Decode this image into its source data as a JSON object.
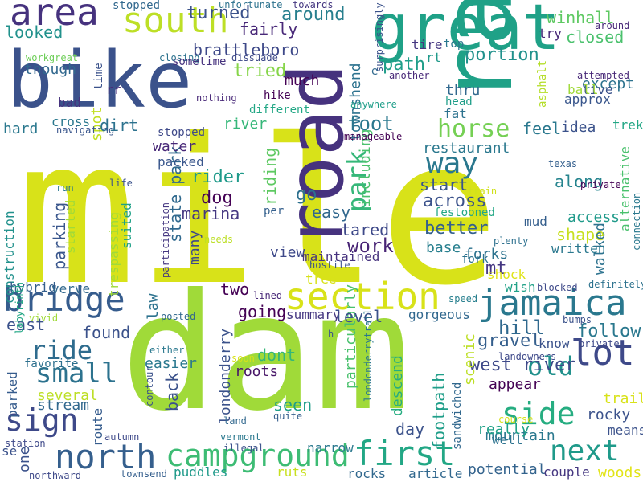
{
  "palette": [
    "#d8e219",
    "#a0da39",
    "#4ac16d",
    "#1fa187",
    "#277f8e",
    "#365c8d",
    "#46327e",
    "#440154"
  ],
  "words": [
    {
      "text": "mile",
      "color": "#d8e219"
    },
    {
      "text": "dam",
      "color": "#a0da39"
    },
    {
      "text": "rail",
      "color": "#1fa187"
    },
    {
      "text": "bike",
      "color": "#3b528b"
    },
    {
      "text": "road",
      "color": "#46327e"
    },
    {
      "text": "great",
      "color": "#1fa187"
    },
    {
      "text": "area",
      "color": "#46327e"
    },
    {
      "text": "south",
      "color": "#bddf26"
    },
    {
      "text": "section",
      "color": "#d8e219"
    },
    {
      "text": "jamaica",
      "color": "#2a788e"
    },
    {
      "text": "bridge",
      "color": "#365c8d"
    },
    {
      "text": "campground",
      "color": "#3dbc74"
    },
    {
      "text": "first",
      "color": "#22a785"
    },
    {
      "text": "north",
      "color": "#355f8d"
    },
    {
      "text": "next",
      "color": "#1f9a8a"
    },
    {
      "text": "lot",
      "color": "#3e4989"
    },
    {
      "text": "side",
      "color": "#26ad81"
    },
    {
      "text": "sign",
      "color": "#3e4989"
    },
    {
      "text": "small",
      "color": "#2c728e"
    },
    {
      "text": "ride",
      "color": "#2f6c8e"
    },
    {
      "text": "way",
      "color": "#2a788e"
    },
    {
      "text": "horse",
      "color": "#75d054"
    },
    {
      "text": "park",
      "color": "#35b779"
    },
    {
      "text": "old",
      "color": "#21918c"
    },
    {
      "text": "turned",
      "color": "#3b528b"
    },
    {
      "text": "around",
      "color": "#277f8e"
    },
    {
      "text": "brattleboro",
      "color": "#3e4989"
    },
    {
      "text": "winhall",
      "color": "#5ec962"
    },
    {
      "text": "closed",
      "color": "#4ac16d"
    },
    {
      "text": "looked",
      "color": "#21918c"
    },
    {
      "text": "though",
      "color": "#31688e"
    },
    {
      "text": "fairly",
      "color": "#482878"
    },
    {
      "text": "spot",
      "color": "#c2df23"
    },
    {
      "text": "tried",
      "color": "#86d549"
    },
    {
      "text": "path",
      "color": "#1f9e89"
    },
    {
      "text": "portion",
      "color": "#21918c"
    },
    {
      "text": "foot",
      "color": "#2a788e"
    },
    {
      "text": "townshend",
      "color": "#2c728e"
    },
    {
      "text": "except",
      "color": "#2c728e"
    },
    {
      "text": "rider",
      "color": "#1f9a8a"
    },
    {
      "text": "restaurant",
      "color": "#2a788e"
    },
    {
      "text": "along",
      "color": "#25848e"
    },
    {
      "text": "across",
      "color": "#3b528b"
    },
    {
      "text": "state park",
      "color": "#30698e"
    },
    {
      "text": "marina",
      "color": "#453781"
    },
    {
      "text": "work",
      "color": "#482475"
    },
    {
      "text": "parking",
      "color": "#39568c"
    },
    {
      "text": "better",
      "color": "#35608d"
    },
    {
      "text": "shape",
      "color": "#c8e020"
    },
    {
      "text": "access",
      "color": "#1f9a8a"
    },
    {
      "text": "walked",
      "color": "#2c728e"
    },
    {
      "text": "londonderry",
      "color": "#3b528b"
    },
    {
      "text": "west river",
      "color": "#3e4989"
    },
    {
      "text": "follow",
      "color": "#2a788e"
    },
    {
      "text": "hill",
      "color": "#30698e"
    },
    {
      "text": "gravel",
      "color": "#355f8d"
    },
    {
      "text": "trailer",
      "color": "#d8e219"
    },
    {
      "text": "mountain",
      "color": "#2a788e"
    },
    {
      "text": "rocky",
      "color": "#3b528b"
    },
    {
      "text": "really",
      "color": "#1fa187"
    },
    {
      "text": "woods",
      "color": "#e2e418"
    },
    {
      "text": "appear",
      "color": "#440154"
    },
    {
      "text": "potential",
      "color": "#33638d"
    },
    {
      "text": "construction",
      "color": "#21918c"
    },
    {
      "text": "trespassing",
      "color": "#a0da39"
    },
    {
      "text": "stream",
      "color": "#31688e"
    },
    {
      "text": "several",
      "color": "#bddf26"
    },
    {
      "text": "favorite",
      "color": "#2d708e"
    },
    {
      "text": "route",
      "color": "#365c8d"
    },
    {
      "text": "found",
      "color": "#3b528b"
    },
    {
      "text": "east",
      "color": "#3b528b"
    },
    {
      "text": "back",
      "color": "#3b528b"
    },
    {
      "text": "going",
      "color": "#440154"
    },
    {
      "text": "dont",
      "color": "#35b779"
    },
    {
      "text": "seen",
      "color": "#1f9e89"
    },
    {
      "text": "day",
      "color": "#3b528b"
    },
    {
      "text": "footpath",
      "color": "#1f9e89"
    },
    {
      "text": "descend",
      "color": "#26ad81"
    },
    {
      "text": "particularly",
      "color": "#4ac16d"
    },
    {
      "text": "level",
      "color": "#3b528b"
    },
    {
      "text": "summary",
      "color": "#453781"
    },
    {
      "text": "gorgeous",
      "color": "#31688e"
    },
    {
      "text": "scenic",
      "color": "#bddf26"
    },
    {
      "text": "water",
      "color": "#482878"
    },
    {
      "text": "packed",
      "color": "#39568c"
    },
    {
      "text": "dog",
      "color": "#440154"
    },
    {
      "text": "go",
      "color": "#2d708e"
    },
    {
      "text": "easy",
      "color": "#31688e"
    },
    {
      "text": "tared",
      "color": "#3e4989"
    },
    {
      "text": "view",
      "color": "#3e4989"
    },
    {
      "text": "maintained",
      "color": "#46327e"
    },
    {
      "text": "riding",
      "color": "#5ec962"
    },
    {
      "text": "including",
      "color": "#4ac16d"
    },
    {
      "text": "start",
      "color": "#39568c"
    },
    {
      "text": "base",
      "color": "#277f8e"
    },
    {
      "text": "forks",
      "color": "#2c728e"
    },
    {
      "text": "mt",
      "color": "#453781"
    },
    {
      "text": "mud",
      "color": "#355f8d"
    },
    {
      "text": "written",
      "color": "#2a788e"
    },
    {
      "text": "alternative",
      "color": "#4ac16d"
    },
    {
      "text": "idea",
      "color": "#3b528b"
    },
    {
      "text": "feel",
      "color": "#2a788e"
    },
    {
      "text": "trek",
      "color": "#22a785"
    },
    {
      "text": "dirt",
      "color": "#2c728e"
    },
    {
      "text": "cross",
      "color": "#2a788e"
    },
    {
      "text": "hard",
      "color": "#2a788e"
    },
    {
      "text": "river",
      "color": "#35b779"
    },
    {
      "text": "much",
      "color": "#440154"
    },
    {
      "text": "rr",
      "color": "#482878"
    },
    {
      "text": "bad",
      "color": "#46327e"
    },
    {
      "text": "fat",
      "color": "#2c728e"
    },
    {
      "text": "head",
      "color": "#1f9e89"
    },
    {
      "text": "thru",
      "color": "#31688e"
    },
    {
      "text": "asphalt",
      "color": "#b5de2b"
    },
    {
      "text": "approx",
      "color": "#39568c"
    },
    {
      "text": "live",
      "color": "#3b528b"
    },
    {
      "text": "ball",
      "color": "#a0da39"
    },
    {
      "text": "tire",
      "color": "#453781"
    },
    {
      "text": "rt",
      "color": "#1f9a8a"
    },
    {
      "text": "top",
      "color": "#2a788e"
    },
    {
      "text": "try",
      "color": "#482878"
    },
    {
      "text": "stopped",
      "color": "#31688e"
    },
    {
      "text": "unfortunate",
      "color": "#2c728e"
    },
    {
      "text": "towards",
      "color": "#453781"
    },
    {
      "text": "surprisingly",
      "color": "#3b528b"
    },
    {
      "text": "around",
      "color": "#482878"
    },
    {
      "text": "workgreat",
      "color": "#6ece58"
    },
    {
      "text": "closing",
      "color": "#2c728e"
    },
    {
      "text": "sometime",
      "color": "#46327e"
    },
    {
      "text": "dissuade",
      "color": "#3e4989"
    },
    {
      "text": "another",
      "color": "#482878"
    },
    {
      "text": "attempted",
      "color": "#482878"
    },
    {
      "text": "time",
      "color": "#3b528b"
    },
    {
      "text": "nothing",
      "color": "#482878"
    },
    {
      "text": "hike",
      "color": "#440154"
    },
    {
      "text": "anywhere",
      "color": "#1f9e89"
    },
    {
      "text": "e",
      "color": "#30698e"
    },
    {
      "text": "navigating",
      "color": "#39568c"
    },
    {
      "text": "stopped",
      "color": "#3e4989"
    },
    {
      "text": "different",
      "color": "#22a785"
    },
    {
      "text": "manageable",
      "color": "#440154"
    },
    {
      "text": "festooned",
      "color": "#22a785"
    },
    {
      "text": "texas",
      "color": "#35608d"
    },
    {
      "text": "private",
      "color": "#440154"
    },
    {
      "text": "plenty",
      "color": "#2d708e"
    },
    {
      "text": "connection",
      "color": "#2a788e"
    },
    {
      "text": "train",
      "color": "#d0e11c"
    },
    {
      "text": "run",
      "color": "#2a788e"
    },
    {
      "text": "life",
      "color": "#3b528b"
    },
    {
      "text": "per",
      "color": "#35608d"
    },
    {
      "text": "suited",
      "color": "#1fa187"
    },
    {
      "text": "started",
      "color": "#a0da39"
    },
    {
      "text": "participation",
      "color": "#453781"
    },
    {
      "text": "needs",
      "color": "#bddf26"
    },
    {
      "text": "hostile",
      "color": "#3b528b"
    },
    {
      "text": "tree",
      "color": "#d8e219"
    },
    {
      "text": "shock",
      "color": "#dfe318"
    },
    {
      "text": "many",
      "color": "#3e4989"
    },
    {
      "text": "two",
      "color": "#440154"
    },
    {
      "text": "law",
      "color": "#2c728e"
    },
    {
      "text": "hybrid",
      "color": "#355f8d"
    },
    {
      "text": "verve",
      "color": "#31688e"
    },
    {
      "text": "lined",
      "color": "#482878"
    },
    {
      "text": "speed",
      "color": "#277f8e"
    },
    {
      "text": "wish",
      "color": "#1fa187"
    },
    {
      "text": "blocked",
      "color": "#3e4989"
    },
    {
      "text": "definitely",
      "color": "#2c728e"
    },
    {
      "text": "posted",
      "color": "#31688e"
    },
    {
      "text": "vivid",
      "color": "#a0da39"
    },
    {
      "text": "labyrinth",
      "color": "#22a785"
    },
    {
      "text": "bumps",
      "color": "#3b528b"
    },
    {
      "text": "know",
      "color": "#3b528b"
    },
    {
      "text": "private",
      "color": "#3e4989"
    },
    {
      "text": "landowners",
      "color": "#3e4989"
    },
    {
      "text": "either",
      "color": "#2a788e"
    },
    {
      "text": "easier",
      "color": "#2a788e"
    },
    {
      "text": "soon",
      "color": "#d8e219"
    },
    {
      "text": "roots",
      "color": "#481668"
    },
    {
      "text": "h",
      "color": "#3b528b"
    },
    {
      "text": "londonderrytrail",
      "color": "#2a788e"
    },
    {
      "text": "contour",
      "color": "#3b528b"
    },
    {
      "text": "parked",
      "color": "#365c8d"
    },
    {
      "text": "land",
      "color": "#31688e"
    },
    {
      "text": "quite",
      "color": "#355f8d"
    },
    {
      "text": "autumn",
      "color": "#3e4989"
    },
    {
      "text": "vermont",
      "color": "#2a788e"
    },
    {
      "text": "illegal",
      "color": "#3b528b"
    },
    {
      "text": "sandwiched",
      "color": "#31688e"
    },
    {
      "text": "course",
      "color": "#d8e219"
    },
    {
      "text": "means",
      "color": "#3b528b"
    },
    {
      "text": "well",
      "color": "#2c728e"
    },
    {
      "text": "couple",
      "color": "#453781"
    },
    {
      "text": "station",
      "color": "#3e4989"
    },
    {
      "text": "one",
      "color": "#3b528b"
    },
    {
      "text": "se",
      "color": "#3b528b"
    },
    {
      "text": "northward",
      "color": "#3e4989"
    },
    {
      "text": "townsend",
      "color": "#355f8d"
    },
    {
      "text": "puddles",
      "color": "#1f9a8a"
    },
    {
      "text": "narrow",
      "color": "#2a788e"
    },
    {
      "text": "ruts",
      "color": "#c8e020"
    },
    {
      "text": "rocks",
      "color": "#31688e"
    },
    {
      "text": "article",
      "color": "#31688e"
    },
    {
      "text": "fork",
      "color": "#2c728e"
    }
  ]
}
